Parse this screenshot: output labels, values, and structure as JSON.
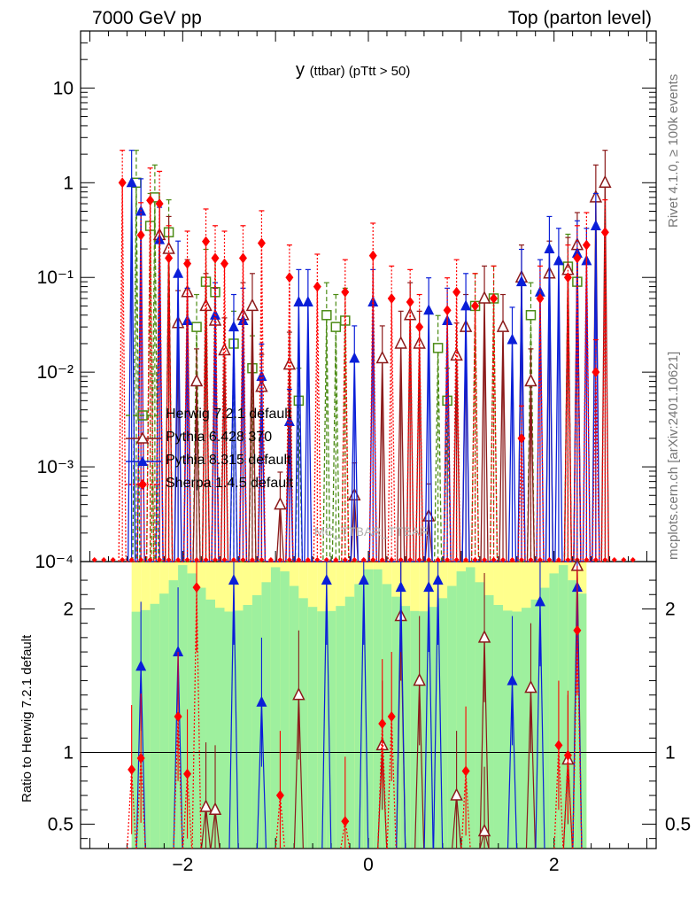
{
  "header": {
    "left": "7000 GeV pp",
    "right": "Top (parton level)"
  },
  "side_labels": {
    "upper": "Rivet 4.1.0, ≥ 100k events",
    "lower": "mcplots.cern.ch [arXiv:2401.10621]"
  },
  "watermark": "MC_TTBAR_TTBAR",
  "chart_data": {
    "type": "scatter",
    "title_main": "y",
    "title_sub": "(ttbar)  (pTtt > 50)",
    "xlabel": "",
    "ylabel": "",
    "ratio_ylabel": "Ratio to Herwig 7.2.1 default",
    "xlim": [
      -3.1,
      3.1
    ],
    "ylim": [
      0.0001,
      40
    ],
    "yscale": "log",
    "ratio_ylim": [
      0.33,
      2.33
    ],
    "x_ticks": [
      -2,
      0,
      2
    ],
    "x_tick_labels": [
      "−2",
      "0",
      "2"
    ],
    "y_ticks": [
      0.0001,
      0.001,
      0.01,
      0.1,
      1,
      10
    ],
    "y_tick_labels": [
      "10⁻⁴",
      "10⁻³",
      "10⁻²",
      "10⁻¹",
      "1",
      "10"
    ],
    "ratio_ticks": [
      0.5,
      1,
      2
    ],
    "ratio_tick_labels": [
      "0.5",
      "1",
      "2"
    ],
    "series": [
      {
        "name": "Herwig 7.2.1 default",
        "color": "#4b8b14",
        "marker": "open-square",
        "dash": "5,3",
        "points": [
          {
            "x": -2.5,
            "y": 1.0
          },
          {
            "x": -2.35,
            "y": 0.35
          },
          {
            "x": -2.3,
            "y": 0.7
          },
          {
            "x": -2.15,
            "y": 0.3
          },
          {
            "x": -1.85,
            "y": 0.03
          },
          {
            "x": -1.75,
            "y": 0.09
          },
          {
            "x": -1.65,
            "y": 0.07
          },
          {
            "x": -1.45,
            "y": 0.02
          },
          {
            "x": -1.25,
            "y": 0.011
          },
          {
            "x": -0.75,
            "y": 0.005
          },
          {
            "x": -0.45,
            "y": 0.04
          },
          {
            "x": -0.35,
            "y": 0.03
          },
          {
            "x": -0.25,
            "y": 0.035
          },
          {
            "x": 0.75,
            "y": 0.018
          },
          {
            "x": 0.85,
            "y": 0.005
          },
          {
            "x": 1.15,
            "y": 0.05
          },
          {
            "x": 1.35,
            "y": 0.06
          },
          {
            "x": 1.75,
            "y": 0.04
          },
          {
            "x": 2.15,
            "y": 0.13
          },
          {
            "x": 2.25,
            "y": 0.09
          }
        ]
      },
      {
        "name": "Pythia 6.428 370",
        "color": "#8b1a1a",
        "marker": "open-triangle",
        "dash": "",
        "points": [
          {
            "x": -2.25,
            "y": 0.28
          },
          {
            "x": -2.15,
            "y": 0.2
          },
          {
            "x": -2.05,
            "y": 0.033
          },
          {
            "x": -1.95,
            "y": 0.07
          },
          {
            "x": -1.85,
            "y": 0.008
          },
          {
            "x": -1.75,
            "y": 0.05
          },
          {
            "x": -1.65,
            "y": 0.035
          },
          {
            "x": -1.55,
            "y": 0.017
          },
          {
            "x": -1.35,
            "y": 0.04
          },
          {
            "x": -1.25,
            "y": 0.05
          },
          {
            "x": -1.15,
            "y": 0.007
          },
          {
            "x": -0.95,
            "y": 0.0004
          },
          {
            "x": -0.85,
            "y": 0.012
          },
          {
            "x": -0.15,
            "y": 0.0005
          },
          {
            "x": 0.15,
            "y": 0.014
          },
          {
            "x": 0.35,
            "y": 0.02
          },
          {
            "x": 0.45,
            "y": 0.04
          },
          {
            "x": 0.55,
            "y": 0.02
          },
          {
            "x": 0.65,
            "y": 0.0003
          },
          {
            "x": 0.95,
            "y": 0.015
          },
          {
            "x": 1.05,
            "y": 0.03
          },
          {
            "x": 1.25,
            "y": 0.06
          },
          {
            "x": 1.45,
            "y": 0.03
          },
          {
            "x": 1.65,
            "y": 0.1
          },
          {
            "x": 1.75,
            "y": 0.008
          },
          {
            "x": 1.95,
            "y": 0.11
          },
          {
            "x": 2.15,
            "y": 0.12
          },
          {
            "x": 2.25,
            "y": 0.22
          },
          {
            "x": 2.45,
            "y": 0.7
          },
          {
            "x": 2.55,
            "y": 1.0
          }
        ]
      },
      {
        "name": "Pythia 8.315 default",
        "color": "#0a1ed8",
        "marker": "triangle",
        "dash": "",
        "points": [
          {
            "x": -2.55,
            "y": 1.0
          },
          {
            "x": -2.45,
            "y": 0.5
          },
          {
            "x": -2.25,
            "y": 0.25
          },
          {
            "x": -2.05,
            "y": 0.11
          },
          {
            "x": -1.95,
            "y": 0.035
          },
          {
            "x": -1.65,
            "y": 0.04
          },
          {
            "x": -1.45,
            "y": 0.03
          },
          {
            "x": -1.35,
            "y": 0.035
          },
          {
            "x": -1.15,
            "y": 0.009
          },
          {
            "x": -0.85,
            "y": 0.003
          },
          {
            "x": -0.75,
            "y": 0.055
          },
          {
            "x": -0.65,
            "y": 0.055
          },
          {
            "x": -0.15,
            "y": 0.014
          },
          {
            "x": 0.05,
            "y": 0.055
          },
          {
            "x": 0.65,
            "y": 0.045
          },
          {
            "x": 0.85,
            "y": 0.035
          },
          {
            "x": 1.05,
            "y": 0.05
          },
          {
            "x": 1.55,
            "y": 0.022
          },
          {
            "x": 1.65,
            "y": 0.09
          },
          {
            "x": 1.85,
            "y": 0.07
          },
          {
            "x": 1.95,
            "y": 0.2
          },
          {
            "x": 2.05,
            "y": 0.15
          },
          {
            "x": 2.25,
            "y": 0.18
          },
          {
            "x": 2.35,
            "y": 0.15
          },
          {
            "x": 2.45,
            "y": 0.35
          }
        ]
      },
      {
        "name": "Sherpa 1.4.5 default",
        "color": "#ff0000",
        "marker": "diamond",
        "dash": "2,2",
        "points": [
          {
            "x": -2.65,
            "y": 1.0
          },
          {
            "x": -2.45,
            "y": 0.28
          },
          {
            "x": -2.35,
            "y": 0.65
          },
          {
            "x": -2.25,
            "y": 0.6
          },
          {
            "x": -2.15,
            "y": 0.16
          },
          {
            "x": -1.95,
            "y": 0.14
          },
          {
            "x": -1.75,
            "y": 0.24
          },
          {
            "x": -1.65,
            "y": 0.16
          },
          {
            "x": -1.55,
            "y": 0.14
          },
          {
            "x": -1.35,
            "y": 0.16
          },
          {
            "x": -1.15,
            "y": 0.23
          },
          {
            "x": -0.85,
            "y": 0.1
          },
          {
            "x": -0.55,
            "y": 0.08
          },
          {
            "x": -0.25,
            "y": 0.07
          },
          {
            "x": 0.05,
            "y": 0.17
          },
          {
            "x": 0.25,
            "y": 0.06
          },
          {
            "x": 0.45,
            "y": 0.055
          },
          {
            "x": 0.55,
            "y": 0.03
          },
          {
            "x": 0.85,
            "y": 0.045
          },
          {
            "x": 0.95,
            "y": 0.07
          },
          {
            "x": 1.15,
            "y": 0.05
          },
          {
            "x": 1.35,
            "y": 0.06
          },
          {
            "x": 1.65,
            "y": 0.002
          },
          {
            "x": 1.85,
            "y": 0.06
          },
          {
            "x": 2.15,
            "y": 0.1
          },
          {
            "x": 2.25,
            "y": 0.16
          },
          {
            "x": 2.35,
            "y": 0.22
          },
          {
            "x": 2.45,
            "y": 0.01
          },
          {
            "x": 2.55,
            "y": 0.3
          }
        ]
      }
    ],
    "ratio_series": [
      {
        "name": "Pythia 6.428 370",
        "points": [
          {
            "x": -1.75,
            "y": 0.62
          },
          {
            "x": -1.65,
            "y": 0.6
          },
          {
            "x": -0.75,
            "y": 1.4
          },
          {
            "x": 0.15,
            "y": 1.05
          },
          {
            "x": 0.35,
            "y": 1.95
          },
          {
            "x": 0.55,
            "y": 1.5
          },
          {
            "x": 0.95,
            "y": 0.7
          },
          {
            "x": 1.25,
            "y": 1.8
          },
          {
            "x": 1.25,
            "y": 0.45
          },
          {
            "x": 1.75,
            "y": 1.45
          },
          {
            "x": 2.15,
            "y": 0.95
          },
          {
            "x": 2.25,
            "y": 2.3
          }
        ]
      },
      {
        "name": "Pythia 8.315 default",
        "points": [
          {
            "x": -2.45,
            "y": 1.6
          },
          {
            "x": -2.05,
            "y": 1.7
          },
          {
            "x": -1.45,
            "y": 2.2
          },
          {
            "x": -1.15,
            "y": 1.35
          },
          {
            "x": -0.45,
            "y": 2.2
          },
          {
            "x": -0.05,
            "y": 2.2
          },
          {
            "x": 0.35,
            "y": 2.15
          },
          {
            "x": 0.65,
            "y": 2.15
          },
          {
            "x": 0.75,
            "y": 2.2
          },
          {
            "x": 1.55,
            "y": 1.5
          },
          {
            "x": 1.85,
            "y": 2.05
          },
          {
            "x": 2.25,
            "y": 2.15
          }
        ]
      },
      {
        "name": "Sherpa 1.4.5 default",
        "points": [
          {
            "x": -2.55,
            "y": 0.88
          },
          {
            "x": -2.45,
            "y": 0.96
          },
          {
            "x": -2.05,
            "y": 1.25
          },
          {
            "x": -1.95,
            "y": 0.85
          },
          {
            "x": -1.85,
            "y": 2.15
          },
          {
            "x": -0.95,
            "y": 0.7
          },
          {
            "x": -0.25,
            "y": 0.52
          },
          {
            "x": 0.15,
            "y": 1.2
          },
          {
            "x": 0.25,
            "y": 1.25
          },
          {
            "x": 1.05,
            "y": 0.87
          },
          {
            "x": 2.05,
            "y": 1.05
          },
          {
            "x": 2.15,
            "y": 0.98
          },
          {
            "x": 2.25,
            "y": 1.85
          }
        ]
      }
    ]
  }
}
